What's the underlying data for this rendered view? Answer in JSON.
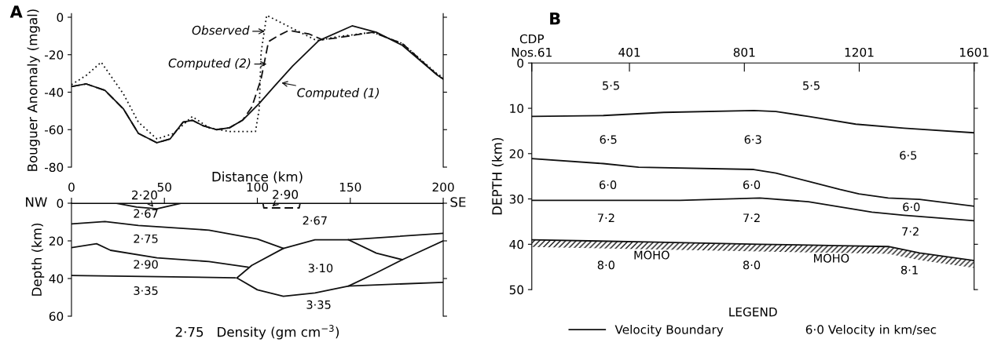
{
  "chart_data": [
    {
      "type": "line",
      "title": "A",
      "xlabel": "Distance (km)",
      "ylabel": "Bouguer Anomaly (mgal)",
      "xlim": [
        0,
        200
      ],
      "ylim": [
        -80,
        2
      ],
      "yticks": [
        -80,
        -60,
        -40,
        -20,
        0
      ],
      "tick_labels": "y",
      "grid": false,
      "series": [
        {
          "color": "#111111",
          "line_style": "solid",
          "x": [
            0,
            8,
            18,
            28,
            36,
            46,
            53,
            60,
            65,
            71,
            78,
            85,
            92,
            101,
            109,
            119,
            133,
            151,
            164,
            178,
            197,
            200
          ],
          "values": [
            -37,
            -35.6,
            -39,
            -49,
            -62,
            -67,
            -65,
            -56,
            -55,
            -58,
            -60,
            -59,
            -55,
            -46,
            -37,
            -26,
            -12.5,
            -4.6,
            -8,
            -15,
            -31,
            -33
          ]
        },
        {
          "color": "#111111",
          "line_style": "dashed",
          "x": [
            0,
            8,
            18,
            28,
            36,
            46,
            53,
            60,
            65,
            71,
            78,
            85,
            92,
            97,
            102,
            106,
            111,
            117,
            128,
            135,
            143,
            162,
            178,
            197,
            200
          ],
          "values": [
            -37,
            -35.6,
            -39,
            -49,
            -62,
            -67,
            -65,
            -56,
            -55,
            -58,
            -60,
            -59,
            -55,
            -48,
            -33,
            -13,
            -10,
            -7,
            -9,
            -12,
            -11,
            -8,
            -14,
            -31,
            -33
          ]
        },
        {
          "color": "#111111",
          "line_style": "dotted",
          "x": [
            0,
            8,
            16,
            28,
            36,
            46,
            55,
            65,
            74,
            85,
            99,
            101,
            102,
            105,
            111,
            132,
            143,
            162,
            178,
            197,
            200
          ],
          "values": [
            -36,
            -31,
            -24,
            -41,
            -56,
            -65,
            -62,
            -53,
            -59,
            -61,
            -61,
            -49,
            -19,
            1,
            -2,
            -12.5,
            -10.4,
            -8,
            -14,
            -30.5,
            -32
          ]
        }
      ],
      "annotations": [
        {
          "text": "Observed",
          "x": 104,
          "y": -7.5
        },
        {
          "text": "Computed (2)",
          "x": 105,
          "y": -25
        },
        {
          "text": "Computed (1)",
          "x": 113,
          "y": -35
        }
      ]
    },
    {
      "type": "line",
      "xlabel": "2·75   Density (gm cm$^{−3}$)",
      "ylabel": "Depth (km)",
      "xlim": [
        0,
        200
      ],
      "xticks": [
        0,
        50,
        100,
        150,
        200
      ],
      "ylim": [
        60,
        0
      ],
      "yticks": [
        0,
        20,
        40,
        60
      ],
      "grid": false,
      "series": [
        {
          "color": "#111111",
          "line_style": "solid",
          "x": [
            0,
            200
          ],
          "values": [
            0,
            0
          ]
        },
        {
          "color": "#111111",
          "line_style": "solid",
          "x": [
            24,
            35,
            46,
            59
          ],
          "values": [
            0,
            2,
            3,
            0
          ]
        },
        {
          "color": "#111111",
          "line_style": "dashed",
          "x": [
            103,
            103.5,
            122.5,
            123
          ],
          "values": [
            0,
            2.5,
            2.5,
            0
          ]
        },
        {
          "color": "#111111",
          "line_style": "solid",
          "x": [
            0,
            18,
            36,
            74,
            100,
            114
          ],
          "values": [
            11,
            9.7,
            11.8,
            14.3,
            19,
            24
          ]
        },
        {
          "color": "#111111",
          "line_style": "solid",
          "x": [
            0,
            13.5,
            21,
            46,
            74,
            95
          ],
          "values": [
            23.6,
            21.5,
            25,
            29,
            31,
            34
          ]
        },
        {
          "color": "#111111",
          "line_style": "solid",
          "x": [
            0,
            88
          ],
          "values": [
            38.4,
            39.6
          ]
        },
        {
          "color": "#111111",
          "line_style": "solid",
          "x": [
            89,
            97,
            114,
            131,
            149,
            200
          ],
          "values": [
            39.7,
            33,
            24,
            19.4,
            19.4,
            16
          ]
        },
        {
          "color": "#111111",
          "line_style": "solid",
          "x": [
            149,
            164,
            178
          ],
          "values": [
            19.4,
            26.5,
            30
          ]
        },
        {
          "color": "#111111",
          "line_style": "solid",
          "x": [
            89,
            100,
            114,
            131,
            149,
            164,
            178,
            200
          ],
          "values": [
            39.7,
            46,
            49.4,
            47.7,
            44,
            37,
            30,
            20
          ]
        },
        {
          "color": "#111111",
          "line_style": "solid",
          "x": [
            149,
            200
          ],
          "values": [
            44,
            42
          ]
        }
      ],
      "annotations": [
        {
          "text": "2·20",
          "x": 44,
          "y": 2
        },
        {
          "text": "2·90",
          "x": 108,
          "y": 1.7
        },
        "2·67",
        "2·67",
        "2·75",
        "2·90",
        "3·10",
        "3·35",
        "3·35",
        {
          "text": "NW",
          "x": 0,
          "y": 0
        },
        {
          "text": "SE",
          "x": 200,
          "y": 0
        }
      ]
    },
    {
      "type": "line",
      "title": "B",
      "ylabel": "DEPTH (km)",
      "xlim": [
        61,
        1601
      ],
      "xticks": [
        {
          "value": 61,
          "label": "CDP\nNos.61"
        },
        401,
        801,
        1201,
        1601
      ],
      "ylim": [
        50,
        0
      ],
      "yticks": [
        0,
        10,
        20,
        30,
        40,
        50
      ],
      "grid": false,
      "legend": "bottom",
      "legend_title": "LEGEND",
      "series": [
        {
          "name": "Velocity Boundary",
          "color": "#111111",
          "line_style": "solid",
          "x": [
            61,
            310,
            521,
            834,
            911,
            1024,
            1189,
            1357,
            1601
          ],
          "values": [
            11.8,
            11.6,
            10.9,
            10.5,
            10.7,
            11.8,
            13.5,
            14.4,
            15.4
          ]
        },
        {
          "color": "#111111",
          "line_style": "solid",
          "x": [
            61,
            310,
            433,
            834,
            911,
            1024,
            1133,
            1200,
            1302,
            1411,
            1601
          ],
          "values": [
            21.1,
            22.2,
            23,
            23.5,
            24.3,
            26.1,
            27.9,
            28.9,
            29.8,
            30.1,
            31.6
          ]
        },
        {
          "color": "#111111",
          "line_style": "solid",
          "x": [
            61,
            577,
            855,
            1024,
            1245,
            1357,
            1601
          ],
          "values": [
            30.3,
            30.3,
            29.8,
            30.6,
            32.9,
            33.6,
            34.8
          ]
        },
        {
          "color": "#111111",
          "line_style": "solid",
          "x": [
            61,
            465,
            855,
            1133,
            1302,
            1411,
            1601
          ],
          "values": [
            39,
            39.5,
            40,
            40.3,
            40.5,
            41.9,
            43.6
          ]
        }
      ],
      "annotations": [
        "6·0 Velocity in km/sec",
        "5·5",
        "5·5",
        "6·5",
        "6·3",
        "6·5",
        "6·0",
        "6·0",
        "6·0",
        "7·2",
        "7·2",
        "7·2",
        "MOHO",
        "MOHO",
        "8·0",
        "8·0",
        "8·1"
      ]
    }
  ]
}
